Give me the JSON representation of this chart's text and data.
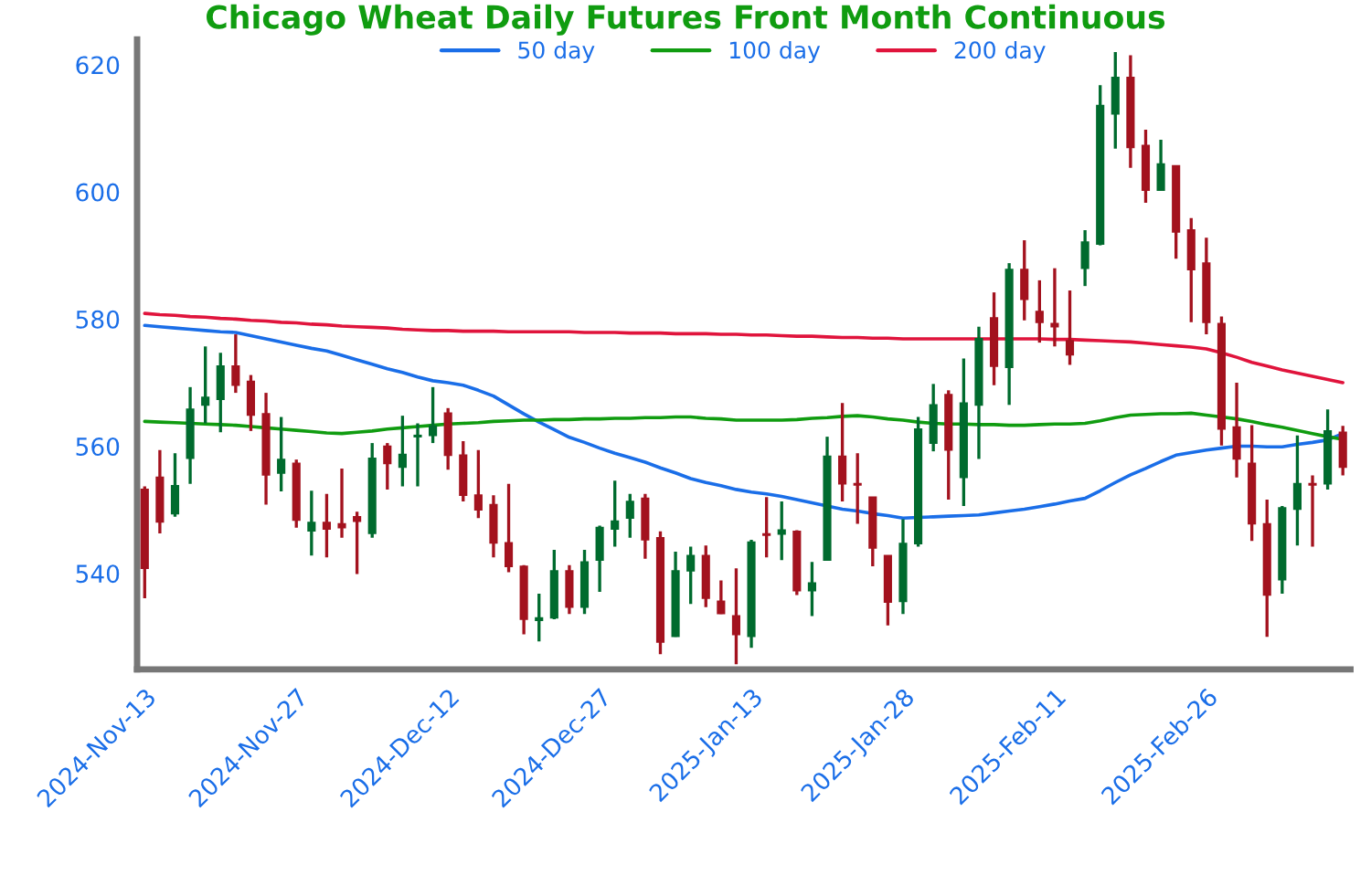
{
  "chart_data": {
    "type": "candlestick",
    "title": "Chicago Wheat Daily Futures Front Month Continuous",
    "categories": [
      "2024-Nov-13",
      null,
      null,
      null,
      null,
      null,
      null,
      null,
      null,
      null,
      "2024-Nov-27",
      null,
      null,
      null,
      null,
      null,
      null,
      null,
      null,
      null,
      "2024-Dec-12",
      null,
      null,
      null,
      null,
      null,
      null,
      null,
      null,
      null,
      "2024-Dec-27",
      null,
      null,
      null,
      null,
      null,
      null,
      null,
      null,
      null,
      "2025-Jan-13",
      null,
      null,
      null,
      null,
      null,
      null,
      null,
      null,
      null,
      "2025-Jan-28",
      null,
      null,
      null,
      null,
      null,
      null,
      null,
      null,
      null,
      "2025-Feb-11",
      null,
      null,
      null,
      null,
      null,
      null,
      null,
      null,
      null,
      "2025-Feb-26",
      null,
      null,
      null,
      null,
      null,
      null,
      null,
      null,
      null
    ],
    "ohlc": [
      [
        553.2,
        553.7,
        536.1,
        540.8
      ],
      [
        555.1,
        559.4,
        546.3,
        548.1
      ],
      [
        549.4,
        558.9,
        548.9,
        553.8
      ],
      [
        558.1,
        569.3,
        554.1,
        565.8
      ],
      [
        566.5,
        575.7,
        563.6,
        567.7
      ],
      [
        567.4,
        574.7,
        562.2,
        572.6
      ],
      [
        572.6,
        577.6,
        568.4,
        569.6
      ],
      [
        570.2,
        571.2,
        562.4,
        564.9
      ],
      [
        565.1,
        568.4,
        550.8,
        555.5
      ],
      [
        555.8,
        564.6,
        552.9,
        557.9
      ],
      [
        557.3,
        557.9,
        547.2,
        548.4
      ],
      [
        546.7,
        553.0,
        542.8,
        548.0
      ],
      [
        548.0,
        552.5,
        542.5,
        547.0
      ],
      [
        547.8,
        556.5,
        545.6,
        547.2
      ],
      [
        548.9,
        549.7,
        539.9,
        548.2
      ],
      [
        546.3,
        560.5,
        545.6,
        558.1
      ],
      [
        560.0,
        560.5,
        553.2,
        557.3
      ],
      [
        556.7,
        564.8,
        553.7,
        558.7
      ],
      [
        561.5,
        563.6,
        553.7,
        561.7
      ],
      [
        561.7,
        569.3,
        560.5,
        563.2
      ],
      [
        565.2,
        566.0,
        556.3,
        558.6
      ],
      [
        558.6,
        560.8,
        551.3,
        552.3
      ],
      [
        552.3,
        559.4,
        548.7,
        550.0
      ],
      [
        550.8,
        552.3,
        542.5,
        544.8
      ],
      [
        544.8,
        554.1,
        540.2,
        541.1
      ],
      [
        541.1,
        541.3,
        530.4,
        532.8
      ],
      [
        532.6,
        536.8,
        529.3,
        533.0
      ],
      [
        533.0,
        543.7,
        532.8,
        540.4
      ],
      [
        540.4,
        541.3,
        533.6,
        534.7
      ],
      [
        534.7,
        543.7,
        533.6,
        541.8
      ],
      [
        542.1,
        547.5,
        537.1,
        547.2
      ],
      [
        547.0,
        554.6,
        544.2,
        548.2
      ],
      [
        548.7,
        552.5,
        545.6,
        551.3
      ],
      [
        551.8,
        552.5,
        542.3,
        545.3
      ],
      [
        545.6,
        546.6,
        527.3,
        529.2
      ],
      [
        530.1,
        543.4,
        530.0,
        540.4
      ],
      [
        540.4,
        544.2,
        535.2,
        542.8
      ],
      [
        542.8,
        544.4,
        534.7,
        536.1
      ],
      [
        535.6,
        538.9,
        533.6,
        533.7
      ],
      [
        533.3,
        540.8,
        525.7,
        530.4
      ],
      [
        530.1,
        545.3,
        528.3,
        544.9
      ],
      [
        546.2,
        552.0,
        542.5,
        546.0
      ],
      [
        546.2,
        551.3,
        542.1,
        546.8
      ],
      [
        546.6,
        546.8,
        536.6,
        537.3
      ],
      [
        537.3,
        541.8,
        533.3,
        538.5
      ],
      [
        542.1,
        561.5,
        542.1,
        558.4
      ],
      [
        558.4,
        566.8,
        551.3,
        554.1
      ],
      [
        554.1,
        558.9,
        547.8,
        553.9
      ],
      [
        552.0,
        552.0,
        541.1,
        544.0
      ],
      [
        542.8,
        542.8,
        531.8,
        535.5
      ],
      [
        535.6,
        548.5,
        533.6,
        544.7
      ],
      [
        544.7,
        564.6,
        544.2,
        562.7
      ],
      [
        560.5,
        569.8,
        559.2,
        566.5
      ],
      [
        568.1,
        568.8,
        551.6,
        559.4
      ],
      [
        555.1,
        573.8,
        550.6,
        566.8
      ],
      [
        566.5,
        578.8,
        558.0,
        576.9
      ],
      [
        580.2,
        584.2,
        569.6,
        572.6
      ],
      [
        572.4,
        588.8,
        566.5,
        587.8
      ],
      [
        587.8,
        592.4,
        579.8,
        583.1
      ],
      [
        581.2,
        586.1,
        576.3,
        579.5
      ],
      [
        579.3,
        588.0,
        575.7,
        578.8
      ],
      [
        576.6,
        584.5,
        572.8,
        574.4
      ],
      [
        588.0,
        594.0,
        585.2,
        592.1
      ],
      [
        591.8,
        616.8,
        591.6,
        613.6
      ],
      [
        612.3,
        622.0,
        606.8,
        618.0
      ],
      [
        618.0,
        621.5,
        603.8,
        607.0
      ],
      [
        607.3,
        609.8,
        598.3,
        600.3
      ],
      [
        600.3,
        608.2,
        600.2,
        604.4
      ],
      [
        604.1,
        604.1,
        589.5,
        593.7
      ],
      [
        594.0,
        595.9,
        579.5,
        587.8
      ],
      [
        588.8,
        592.8,
        577.6,
        579.5
      ],
      [
        579.3,
        580.4,
        560.1,
        562.7
      ],
      [
        563.0,
        570.0,
        555.1,
        558.0
      ],
      [
        557.3,
        563.3,
        545.1,
        547.8
      ],
      [
        547.8,
        551.6,
        530.0,
        536.6
      ],
      [
        539.0,
        550.6,
        536.8,
        550.3
      ],
      [
        550.1,
        561.7,
        544.4,
        554.1
      ],
      [
        554.1,
        555.4,
        544.2,
        553.9
      ],
      [
        554.1,
        565.8,
        553.2,
        562.4
      ],
      [
        562.2,
        563.2,
        555.4,
        556.7
      ]
    ],
    "colors": [
      "#a3121e",
      "#a3121e",
      "#006b2e",
      "#006b2e",
      "#006b2e",
      "#006b2e",
      "#a3121e",
      "#a3121e",
      "#a3121e",
      "#006b2e",
      "#a3121e",
      "#006b2e",
      "#a3121e",
      "#a3121e",
      "#a3121e",
      "#006b2e",
      "#a3121e",
      "#006b2e",
      "#006b2e",
      "#006b2e",
      "#a3121e",
      "#a3121e",
      "#a3121e",
      "#a3121e",
      "#a3121e",
      "#a3121e",
      "#006b2e",
      "#006b2e",
      "#a3121e",
      "#006b2e",
      "#006b2e",
      "#006b2e",
      "#006b2e",
      "#a3121e",
      "#a3121e",
      "#006b2e",
      "#006b2e",
      "#a3121e",
      "#a3121e",
      "#a3121e",
      "#006b2e",
      "#a3121e",
      "#006b2e",
      "#a3121e",
      "#006b2e",
      "#006b2e",
      "#a3121e",
      "#a3121e",
      "#a3121e",
      "#a3121e",
      "#006b2e",
      "#006b2e",
      "#006b2e",
      "#a3121e",
      "#006b2e",
      "#006b2e",
      "#a3121e",
      "#006b2e",
      "#a3121e",
      "#a3121e",
      "#a3121e",
      "#a3121e",
      "#006b2e",
      "#006b2e",
      "#006b2e",
      "#a3121e",
      "#a3121e",
      "#006b2e",
      "#a3121e",
      "#a3121e",
      "#a3121e",
      "#a3121e",
      "#a3121e",
      "#a3121e",
      "#a3121e",
      "#006b2e",
      "#006b2e",
      "#a3121e",
      "#006b2e",
      "#a3121e"
    ],
    "series": [
      {
        "type": "line",
        "name": "50 day",
        "color": "#1a6ee8",
        "values": [
          579.0,
          578.8,
          578.6,
          578.4,
          578.2,
          578.0,
          577.9,
          577.4,
          576.9,
          576.4,
          575.9,
          575.4,
          575.0,
          574.3,
          573.6,
          572.9,
          572.2,
          571.6,
          570.9,
          570.3,
          570.0,
          569.6,
          568.8,
          567.9,
          566.5,
          565.1,
          563.8,
          562.6,
          561.4,
          560.6,
          559.7,
          558.9,
          558.2,
          557.5,
          556.6,
          555.8,
          554.9,
          554.3,
          553.8,
          553.2,
          552.8,
          552.5,
          552.1,
          551.6,
          551.1,
          550.6,
          550.1,
          549.8,
          549.4,
          549.1,
          548.7,
          548.8,
          548.9,
          549.0,
          549.1,
          549.2,
          549.5,
          549.8,
          550.1,
          550.5,
          550.9,
          551.4,
          551.8,
          553.0,
          554.3,
          555.5,
          556.5,
          557.6,
          558.6,
          559.0,
          559.4,
          559.7,
          560.0,
          560.0,
          559.9,
          559.9,
          560.3,
          560.6,
          561.0,
          562.0
        ]
      },
      {
        "type": "line",
        "name": "100 day",
        "color": "#109c10",
        "values": [
          563.9,
          563.8,
          563.7,
          563.6,
          563.5,
          563.4,
          563.3,
          563.1,
          562.9,
          562.7,
          562.5,
          562.3,
          562.1,
          562.0,
          562.2,
          562.4,
          562.7,
          562.9,
          563.1,
          563.3,
          563.5,
          563.6,
          563.7,
          563.9,
          564.0,
          564.1,
          564.1,
          564.2,
          564.2,
          564.3,
          564.3,
          564.4,
          564.4,
          564.5,
          564.5,
          564.6,
          564.6,
          564.4,
          564.3,
          564.1,
          564.1,
          564.1,
          564.1,
          564.2,
          564.4,
          564.5,
          564.7,
          564.8,
          564.6,
          564.3,
          564.1,
          563.8,
          563.6,
          563.5,
          563.5,
          563.4,
          563.4,
          563.3,
          563.3,
          563.4,
          563.5,
          563.5,
          563.6,
          564.0,
          564.5,
          564.9,
          565.0,
          565.1,
          565.1,
          565.2,
          564.9,
          564.6,
          564.3,
          563.9,
          563.4,
          563.0,
          562.5,
          562.0,
          561.5,
          561.1
        ]
      },
      {
        "type": "line",
        "name": "200 day",
        "color": "#e0143c",
        "values": [
          580.9,
          580.7,
          580.6,
          580.4,
          580.3,
          580.1,
          580.0,
          579.8,
          579.7,
          579.5,
          579.4,
          579.2,
          579.1,
          578.9,
          578.8,
          578.7,
          578.6,
          578.4,
          578.3,
          578.2,
          578.2,
          578.1,
          578.1,
          578.1,
          578.0,
          578.0,
          578.0,
          578.0,
          578.0,
          577.9,
          577.9,
          577.9,
          577.8,
          577.8,
          577.8,
          577.7,
          577.7,
          577.7,
          577.6,
          577.6,
          577.5,
          577.5,
          577.4,
          577.3,
          577.3,
          577.2,
          577.1,
          577.1,
          577.0,
          577.0,
          576.9,
          576.9,
          576.9,
          576.9,
          576.9,
          576.9,
          576.9,
          576.9,
          576.9,
          576.9,
          576.8,
          576.8,
          576.7,
          576.6,
          576.5,
          576.4,
          576.2,
          576.0,
          575.8,
          575.6,
          575.3,
          574.7,
          574.0,
          573.2,
          572.6,
          572.0,
          571.5,
          571.0,
          570.5,
          570.0
        ]
      }
    ],
    "ylim": [
      524.9,
      624.0
    ],
    "yticks": [
      540,
      560,
      580,
      600,
      620
    ],
    "grid": false,
    "legend": "top"
  }
}
